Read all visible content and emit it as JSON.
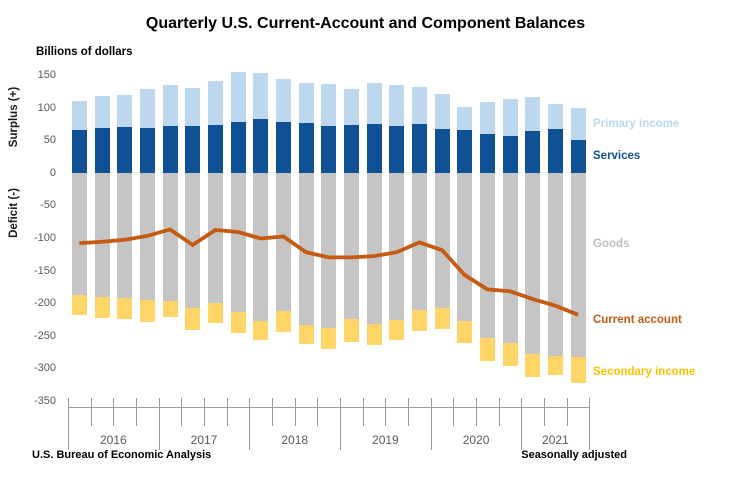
{
  "title": "Quarterly U.S. Current-Account and Component Balances",
  "y_axis_title": "Billions of dollars",
  "surplus_label": "Surplus (+)",
  "deficit_label": "Deficit (-)",
  "footer_left": "U.S. Bureau of Economic Analysis",
  "footer_right": "Seasonally adjusted",
  "colors": {
    "primary_income": "#BDD7EE",
    "services": "#0E5295",
    "goods": "#C5C5C5",
    "secondary_income": "#FFD567",
    "current_account_line": "#C55A11",
    "secondary_income_label": "#FFC000",
    "goods_label": "#BDBDBD",
    "axis_text": "#595959",
    "tick_lines": "#9B9B9B"
  },
  "chart_data": {
    "type": "bar",
    "subtype": "stacked-bars-with-line",
    "title": "Quarterly U.S. Current-Account and Component Balances",
    "ylabel": "Billions of dollars",
    "ylim": [
      -350,
      150
    ],
    "y_ticks": [
      150,
      100,
      50,
      0,
      -50,
      -100,
      -150,
      -200,
      -250,
      -300,
      -350
    ],
    "grid": false,
    "legend_position": "right",
    "categories": [
      "2016 Q1",
      "2016 Q2",
      "2016 Q3",
      "2016 Q4",
      "2017 Q1",
      "2017 Q2",
      "2017 Q3",
      "2017 Q4",
      "2018 Q1",
      "2018 Q2",
      "2018 Q3",
      "2018 Q4",
      "2019 Q1",
      "2019 Q2",
      "2019 Q3",
      "2019 Q4",
      "2020 Q1",
      "2020 Q2",
      "2020 Q3",
      "2020 Q4",
      "2021 Q1",
      "2021 Q2",
      "2021 Q3"
    ],
    "year_labels": [
      "2016",
      "2017",
      "2018",
      "2019",
      "2020",
      "2021"
    ],
    "quarters_per_year": [
      4,
      4,
      4,
      4,
      4,
      3
    ],
    "series": [
      {
        "name": "Primary income",
        "type": "bar",
        "stack": "positive",
        "color": "#BDD7EE",
        "values": [
          45,
          48,
          49,
          59,
          62,
          58,
          68,
          76,
          71,
          66,
          61,
          65,
          56,
          62,
          64,
          57,
          54,
          35,
          49,
          57,
          52,
          38,
          49
        ]
      },
      {
        "name": "Services",
        "type": "bar",
        "stack": "positive",
        "color": "#0E5295",
        "values": [
          66,
          70,
          71,
          70,
          73,
          73,
          74,
          79,
          83,
          79,
          77,
          72,
          74,
          76,
          72,
          75,
          68,
          67,
          61,
          57,
          65,
          68,
          51
        ]
      },
      {
        "name": "Goods",
        "type": "bar",
        "stack": "negative",
        "color": "#C5C5C5",
        "label_color": "#BDBDBD",
        "values": [
          -187,
          -190,
          -192,
          -194,
          -196,
          -207,
          -199,
          -213,
          -226,
          -211,
          -233,
          -237,
          -224,
          -231,
          -225,
          -209,
          -206,
          -227,
          -252,
          -260,
          -277,
          -280,
          -282
        ]
      },
      {
        "name": "Secondary income",
        "type": "bar",
        "stack": "negative",
        "color": "#FFD567",
        "label_color": "#FFC000",
        "values": [
          -31,
          -32,
          -32,
          -34,
          -25,
          -33,
          -31,
          -32,
          -29,
          -33,
          -29,
          -32,
          -34,
          -33,
          -31,
          -33,
          -33,
          -33,
          -36,
          -36,
          -35,
          -30,
          -39
        ]
      },
      {
        "name": "Current account",
        "type": "line",
        "color": "#C55A11",
        "values": [
          -107,
          -105,
          -102,
          -96,
          -86,
          -110,
          -87,
          -90,
          -100,
          -97,
          -121,
          -129,
          -129,
          -127,
          -121,
          -106,
          -118,
          -156,
          -178,
          -181,
          -193,
          -203,
          -217
        ]
      }
    ]
  }
}
